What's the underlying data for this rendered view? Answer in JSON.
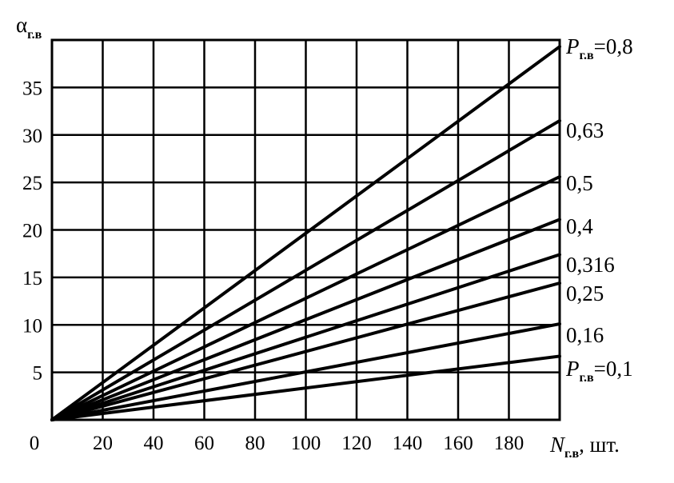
{
  "chart_data": {
    "type": "line",
    "ylabel": {
      "symbol": "α",
      "subscript": "г.в"
    },
    "xlabel": {
      "symbol": "N",
      "subscript": "г.в",
      "suffix": ", шт."
    },
    "xlim": [
      0,
      200
    ],
    "ylim": [
      0,
      40
    ],
    "grid": true,
    "x_ticks": [
      0,
      20,
      40,
      60,
      80,
      100,
      120,
      140,
      160,
      180
    ],
    "x_tick_labels": [
      "0",
      "20",
      "40",
      "60",
      "80",
      "100",
      "120",
      "140",
      "160",
      "180"
    ],
    "y_ticks": [
      5,
      10,
      15,
      20,
      25,
      30,
      35
    ],
    "y_tick_labels": [
      "5",
      "10",
      "15",
      "20",
      "25",
      "30",
      "35"
    ],
    "series": [
      {
        "label": "P",
        "label_sub": "г.в",
        "label_value": "=0,8",
        "x": [
          0,
          200
        ],
        "y": [
          0,
          39.3
        ]
      },
      {
        "label": "0,63",
        "x": [
          0,
          200
        ],
        "y": [
          0,
          31.5
        ]
      },
      {
        "label": "0,5",
        "x": [
          0,
          200
        ],
        "y": [
          0,
          25.6
        ]
      },
      {
        "label": "0,4",
        "x": [
          0,
          200
        ],
        "y": [
          0,
          21.1
        ]
      },
      {
        "label": "0,316",
        "x": [
          0,
          200
        ],
        "y": [
          0,
          17.4
        ]
      },
      {
        "label": "0,25",
        "x": [
          0,
          200
        ],
        "y": [
          0,
          14.4
        ]
      },
      {
        "label": "0,16",
        "x": [
          0,
          200
        ],
        "y": [
          0,
          10.1
        ]
      },
      {
        "label": "P",
        "label_sub": "г.в",
        "label_value": "=0,1",
        "x": [
          0,
          200
        ],
        "y": [
          0,
          6.7
        ]
      }
    ]
  }
}
